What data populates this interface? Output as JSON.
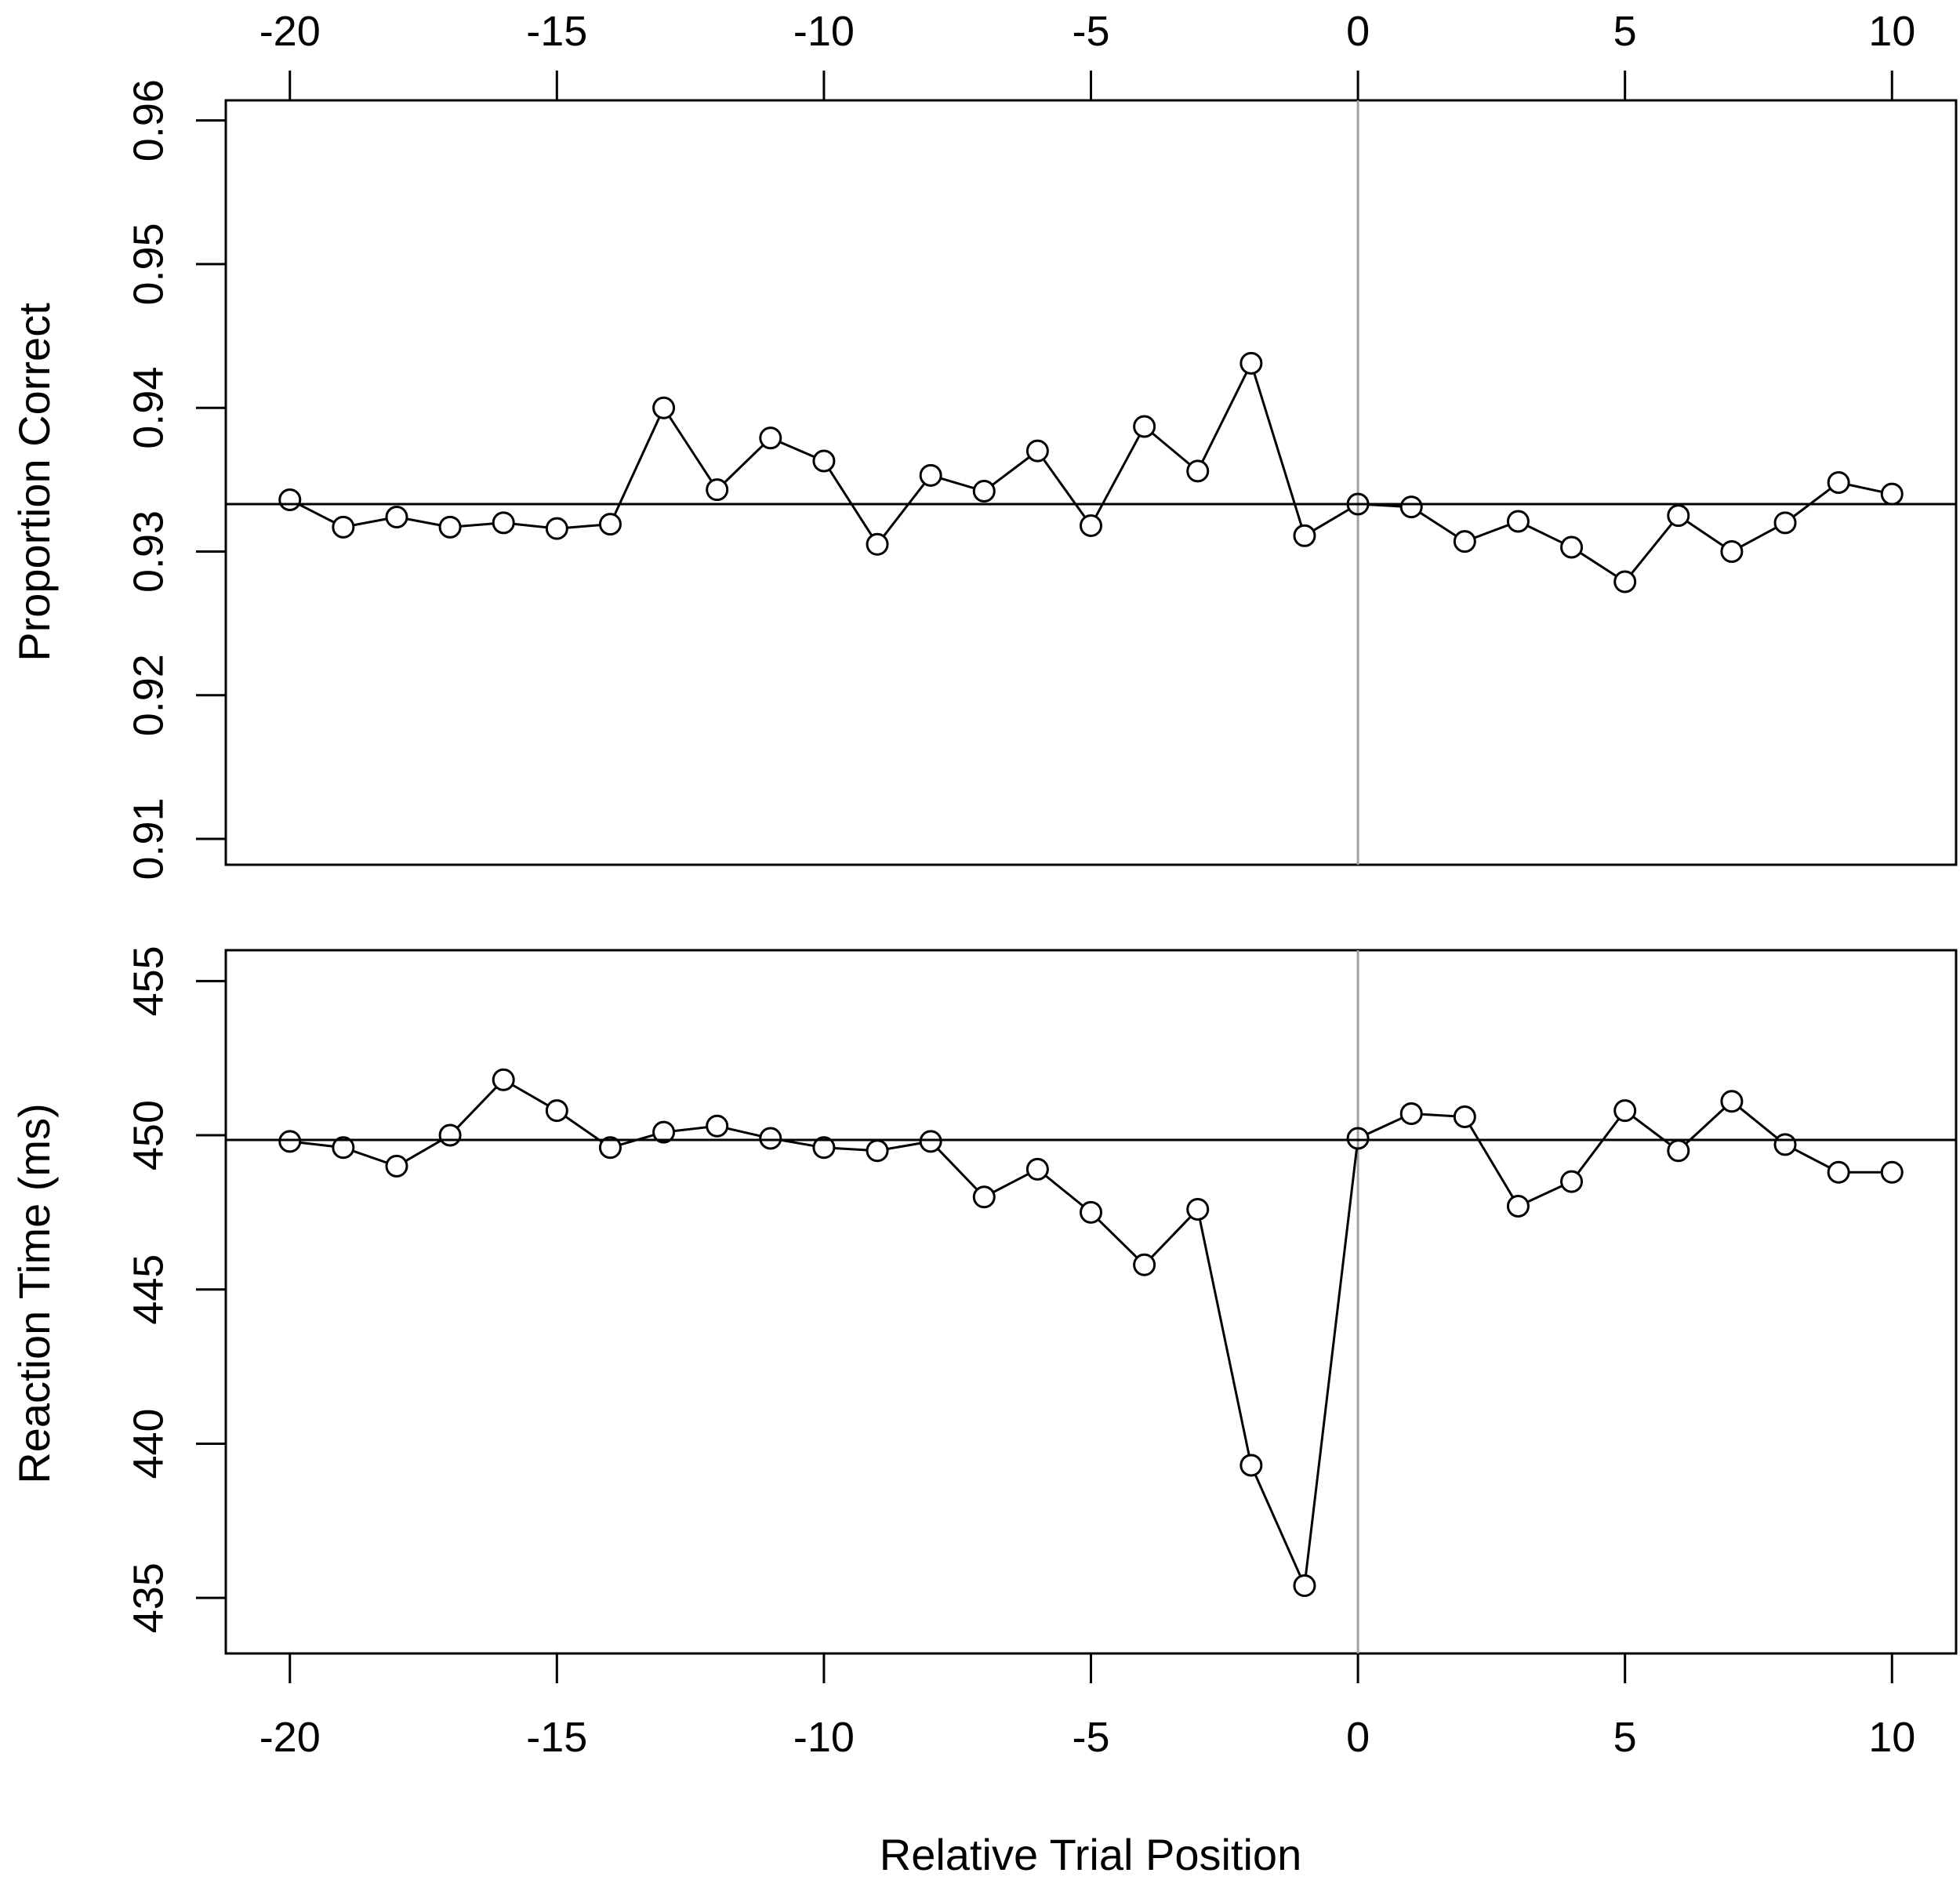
{
  "chart_data": [
    {
      "type": "line",
      "panel": "top",
      "ylabel": "Proportion Correct",
      "xlabel": "",
      "x_ticks": [
        -20,
        -15,
        -10,
        -5,
        0,
        5,
        10
      ],
      "x_tick_labels": [
        "-20",
        "-15",
        "-10",
        "-5",
        "0",
        "5",
        "10"
      ],
      "y_ticks": [
        0.91,
        0.92,
        0.93,
        0.94,
        0.95,
        0.96
      ],
      "y_tick_labels": [
        "0.91",
        "0.92",
        "0.93",
        "0.94",
        "0.95",
        "0.96"
      ],
      "xlim": [
        -21.2,
        11.2
      ],
      "ylim": [
        0.9082,
        0.9614
      ],
      "reference_hline": 0.9333,
      "reference_vline": 0,
      "grid": false,
      "marker": "open-circle",
      "line_color": "#000000",
      "vline_color": "#a0a0a0",
      "x": [
        -20,
        -19,
        -18,
        -17,
        -16,
        -15,
        -14,
        -13,
        -12,
        -11,
        -10,
        -9,
        -8,
        -7,
        -6,
        -5,
        -4,
        -3,
        -2,
        -1,
        0,
        1,
        2,
        3,
        4,
        5,
        6,
        7,
        8,
        9,
        10
      ],
      "values": [
        0.9336,
        0.9317,
        0.9324,
        0.9317,
        0.932,
        0.9316,
        0.9319,
        0.94,
        0.9343,
        0.9379,
        0.9363,
        0.9305,
        0.9353,
        0.9342,
        0.937,
        0.9318,
        0.9387,
        0.9356,
        0.9431,
        0.9311,
        0.9333,
        0.9331,
        0.9307,
        0.9321,
        0.9303,
        0.9279,
        0.9325,
        0.93,
        0.932,
        0.9348,
        0.934
      ]
    },
    {
      "type": "line",
      "panel": "bottom",
      "ylabel": "Reaction Time (ms)",
      "xlabel": "Relative Trial Position",
      "x_ticks": [
        -20,
        -15,
        -10,
        -5,
        0,
        5,
        10
      ],
      "x_tick_labels": [
        "-20",
        "-15",
        "-10",
        "-5",
        "0",
        "5",
        "10"
      ],
      "y_ticks": [
        435,
        440,
        445,
        450,
        455
      ],
      "y_tick_labels": [
        "435",
        "440",
        "445",
        "450",
        "455"
      ],
      "xlim": [
        -21.2,
        11.2
      ],
      "ylim": [
        433.2,
        456.0
      ],
      "reference_hline": 449.85,
      "reference_vline": 0,
      "grid": false,
      "marker": "open-circle",
      "line_color": "#000000",
      "vline_color": "#a0a0a0",
      "x": [
        -20,
        -19,
        -18,
        -17,
        -16,
        -15,
        -14,
        -13,
        -12,
        -11,
        -10,
        -9,
        -8,
        -7,
        -6,
        -5,
        -4,
        -3,
        -2,
        -1,
        0,
        1,
        2,
        3,
        4,
        5,
        6,
        7,
        8,
        9,
        10
      ],
      "values": [
        449.8,
        449.6,
        449.0,
        450.0,
        451.8,
        450.8,
        449.6,
        450.1,
        450.3,
        449.9,
        449.6,
        449.5,
        449.8,
        448.0,
        448.9,
        447.5,
        445.8,
        447.6,
        439.3,
        435.4,
        449.9,
        450.7,
        450.6,
        447.7,
        448.5,
        450.8,
        449.5,
        451.1,
        449.7,
        448.8,
        448.8
      ]
    }
  ]
}
